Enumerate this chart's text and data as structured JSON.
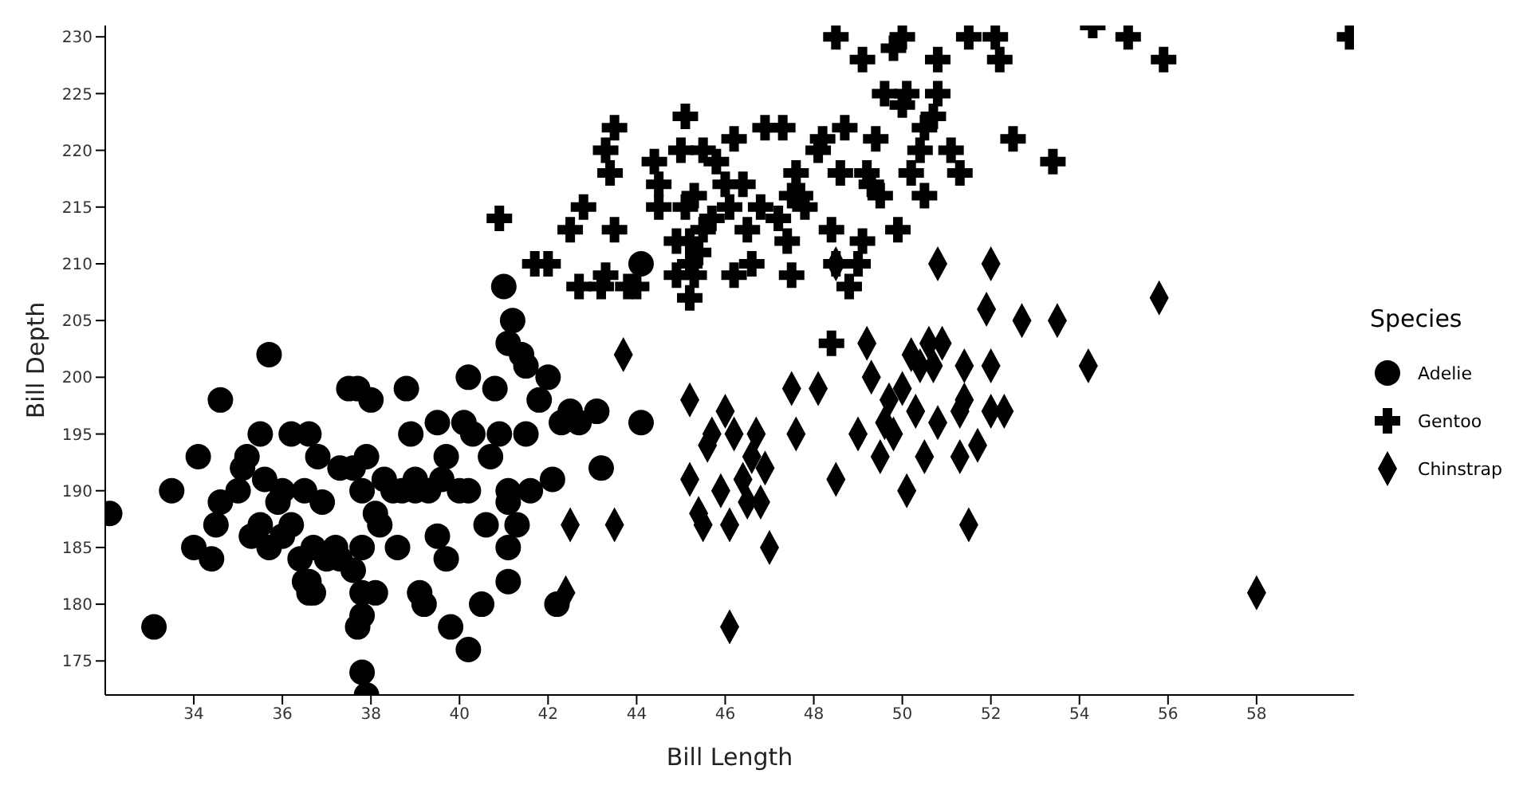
{
  "chart_data": {
    "type": "scatter",
    "xlabel": "Bill Length",
    "ylabel": "Bill Depth",
    "legend_title": "Species",
    "legend": "right",
    "grid": false,
    "xlim": [
      32,
      60.2
    ],
    "xticks": [
      34,
      36,
      38,
      40,
      42,
      44,
      46,
      48,
      50,
      52,
      54,
      56,
      58
    ],
    "ylim": [
      172,
      231
    ],
    "yticks": [
      175,
      180,
      185,
      190,
      195,
      200,
      205,
      210,
      215,
      220,
      225,
      230
    ],
    "series": [
      {
        "name": "Adelie",
        "color": "#000000",
        "marker": "circle",
        "x": [
          32.1,
          33.1,
          33.5,
          34,
          34.1,
          34.4,
          34.5,
          34.6,
          34.6,
          35,
          35.1,
          35.2,
          35.3,
          35.5,
          35.5,
          35.6,
          35.7,
          35.7,
          35.9,
          36,
          36,
          36.2,
          36.2,
          36.4,
          36.5,
          36.6,
          36.6,
          36.6,
          36.7,
          36.8,
          36.9,
          37,
          37.2,
          37.3,
          37.5,
          37.6,
          37.6,
          37.7,
          37.8,
          37.7,
          37.8,
          37.8,
          37.9,
          37.8,
          37.8,
          38,
          38.1,
          38.1,
          38.2,
          38.5,
          38.6,
          38.7,
          38.8,
          38.9,
          39,
          39.1,
          39.2,
          39.3,
          39.5,
          39.5,
          39.6,
          39.7,
          39.8,
          40.1,
          40.2,
          40.3,
          40.2,
          40.2,
          40.5,
          40.6,
          40.8,
          40.9,
          41,
          41.1,
          41.1,
          41.1,
          41.1,
          41.2,
          41.4,
          41.5,
          41.5,
          41.6,
          41.8,
          42,
          42.1,
          42.2,
          42.3,
          42.5,
          42.7,
          43.1,
          43.2,
          44.1,
          44.1,
          40,
          39,
          37.9,
          36.7,
          36.5,
          40.7,
          39.7,
          38.3,
          41.3,
          41.1,
          37.3
        ],
        "values": [
          188,
          178,
          190,
          185,
          193,
          184,
          187,
          189,
          198,
          190,
          192,
          193,
          186,
          187,
          195,
          191,
          185,
          202,
          189,
          190,
          186,
          195,
          187,
          184,
          190,
          195,
          181,
          182,
          185,
          193,
          189,
          184,
          185,
          184,
          199,
          192,
          183,
          199,
          190,
          178,
          179,
          174,
          172,
          185,
          181,
          198,
          188,
          181,
          187,
          190,
          185,
          190,
          199,
          195,
          191,
          181,
          180,
          190,
          186,
          196,
          191,
          184,
          178,
          196,
          190,
          195,
          200,
          176,
          180,
          187,
          199,
          195,
          208,
          190,
          189,
          182,
          203,
          205,
          202,
          201,
          195,
          190,
          198,
          200,
          191,
          180,
          196,
          197,
          196,
          197,
          192,
          210,
          196,
          190,
          190,
          193,
          181,
          182,
          193,
          193,
          191,
          187,
          185,
          192
        ]
      },
      {
        "name": "Gentoo",
        "color": "#000000",
        "marker": "cross",
        "x": [
          40.9,
          41.7,
          42,
          42.5,
          42.7,
          42.8,
          43.2,
          43.3,
          43.4,
          43.5,
          43.5,
          43.8,
          44,
          44.4,
          44.5,
          44.5,
          44.9,
          45.1,
          45,
          45.1,
          45.2,
          45.2,
          45.3,
          45.4,
          45.5,
          45.5,
          45.2,
          45.3,
          45.7,
          45.8,
          46.1,
          46.2,
          46.2,
          46.4,
          46.5,
          46.6,
          46.8,
          46.9,
          47.2,
          47.3,
          47.4,
          47.5,
          47.5,
          47.7,
          47.8,
          48.1,
          48.2,
          48.4,
          48.5,
          48.6,
          48.7,
          48.5,
          48.8,
          48.4,
          49,
          49.1,
          49.2,
          49.1,
          49.3,
          49.4,
          49.5,
          49.6,
          49.8,
          49.9,
          50,
          50,
          50.1,
          50.2,
          50.4,
          50.5,
          50.5,
          50.7,
          50.8,
          50.8,
          51.1,
          51.3,
          51.5,
          52.1,
          52.2,
          52.5,
          53.4,
          54.3,
          55.1,
          55.9,
          60.1,
          46,
          47.6,
          43.3,
          44.9
        ],
        "values": [
          214,
          210,
          210,
          213,
          208,
          215,
          208,
          220,
          218,
          213,
          222,
          208,
          208,
          219,
          217,
          215,
          212,
          223,
          220,
          215,
          212,
          210,
          216,
          211,
          220,
          213,
          207,
          209,
          214,
          219,
          215,
          221,
          209,
          217,
          213,
          210,
          215,
          222,
          214,
          222,
          212,
          216,
          209,
          216,
          215,
          220,
          221,
          213,
          210,
          218,
          222,
          230,
          208,
          203,
          210,
          212,
          218,
          228,
          217,
          221,
          216,
          225,
          229,
          213,
          224,
          230,
          225,
          218,
          220,
          222,
          216,
          223,
          225,
          228,
          220,
          218,
          230,
          230,
          228,
          221,
          219,
          231,
          230,
          228,
          230,
          217,
          218,
          209,
          209
        ]
      },
      {
        "name": "Chinstrap",
        "color": "#000000",
        "marker": "diamond",
        "x": [
          42.5,
          42.4,
          43.5,
          43.7,
          45.2,
          45.2,
          45.4,
          45.6,
          45.7,
          45.9,
          46,
          46.1,
          46.1,
          46.2,
          46.4,
          46.5,
          46.6,
          46.7,
          46.9,
          47,
          46.8,
          47.5,
          47.6,
          48.1,
          48.5,
          49,
          49.2,
          49.3,
          49.5,
          49.6,
          49.7,
          49.8,
          50,
          50.1,
          50.2,
          50.3,
          50.4,
          50.5,
          50.6,
          50.7,
          50.8,
          50.8,
          50.9,
          51.3,
          51.3,
          51.4,
          51.4,
          51.5,
          51.7,
          51.9,
          52,
          52,
          52,
          52.3,
          52.7,
          53.5,
          54.2,
          55.8,
          58,
          45.5,
          48.5
        ],
        "values": [
          187,
          181,
          187,
          202,
          198,
          191,
          188,
          194,
          195,
          190,
          197,
          187,
          178,
          195,
          191,
          189,
          193,
          195,
          192,
          185,
          189,
          199,
          195,
          199,
          191,
          195,
          203,
          200,
          193,
          196,
          198,
          195,
          199,
          190,
          202,
          197,
          201,
          193,
          203,
          201,
          196,
          210,
          203,
          193,
          197,
          198,
          201,
          187,
          194,
          206,
          201,
          197,
          210,
          197,
          205,
          205,
          201,
          207,
          181,
          187,
          210
        ]
      }
    ]
  }
}
